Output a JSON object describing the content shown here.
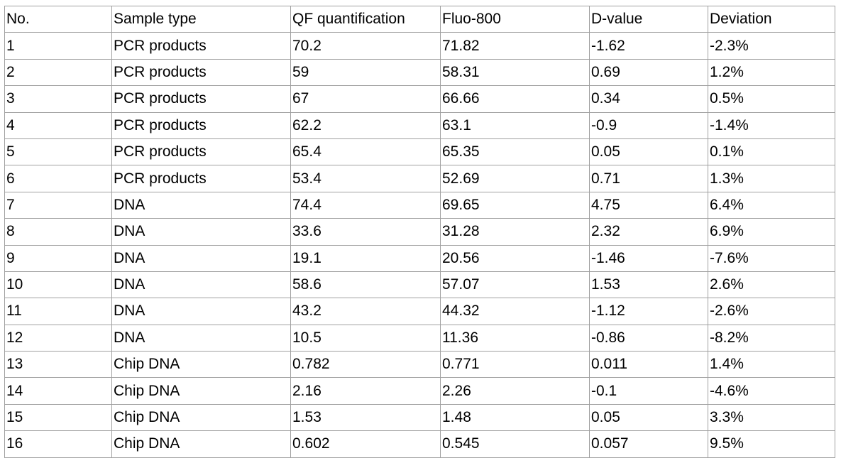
{
  "table": {
    "header": [
      "No.",
      "Sample type",
      "QF quantification",
      "Fluo-800",
      "D-value",
      "Deviation"
    ],
    "rows": [
      [
        "1",
        "PCR products",
        "70.2",
        "71.82",
        "-1.62",
        "-2.3%"
      ],
      [
        "2",
        "PCR products",
        "59",
        "58.31",
        "0.69",
        "1.2%"
      ],
      [
        "3",
        "PCR products",
        "67",
        "66.66",
        "0.34",
        "0.5%"
      ],
      [
        "4",
        "PCR products",
        "62.2",
        "63.1",
        "-0.9",
        "-1.4%"
      ],
      [
        "5",
        "PCR products",
        "65.4",
        "65.35",
        "0.05",
        "0.1%"
      ],
      [
        "6",
        "PCR products",
        "53.4",
        "52.69",
        "0.71",
        "1.3%"
      ],
      [
        "7",
        "DNA",
        "74.4",
        "69.65",
        "4.75",
        "6.4%"
      ],
      [
        "8",
        "DNA",
        "33.6",
        "31.28",
        "2.32",
        "6.9%"
      ],
      [
        "9",
        "DNA",
        "19.1",
        "20.56",
        "-1.46",
        "-7.6%"
      ],
      [
        "10",
        "DNA",
        "58.6",
        "57.07",
        "1.53",
        "2.6%"
      ],
      [
        "11",
        "DNA",
        "43.2",
        "44.32",
        "-1.12",
        "-2.6%"
      ],
      [
        "12",
        "DNA",
        "10.5",
        "11.36",
        "-0.86",
        "-8.2%"
      ],
      [
        "13",
        "Chip DNA",
        "0.782",
        "0.771",
        "0.011",
        "1.4%"
      ],
      [
        "14",
        "Chip DNA",
        "2.16",
        "2.26",
        "-0.1",
        "-4.6%"
      ],
      [
        "15",
        "Chip DNA",
        "1.53",
        "1.48",
        "0.05",
        "3.3%"
      ],
      [
        "16",
        "Chip DNA",
        "0.602",
        "0.545",
        "0.057",
        "9.5%"
      ]
    ]
  }
}
